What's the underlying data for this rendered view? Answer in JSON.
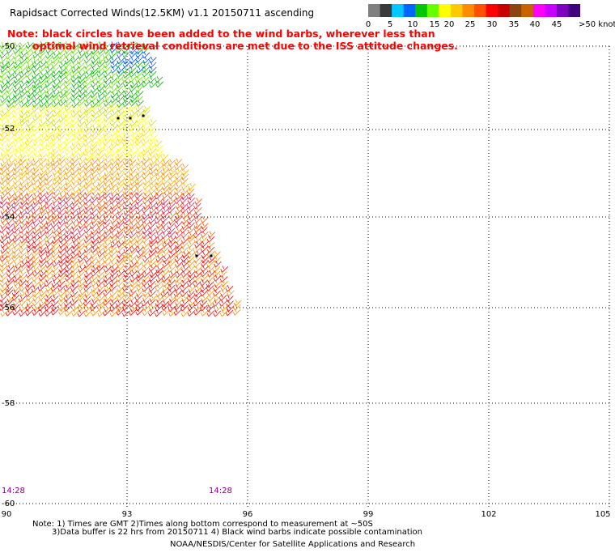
{
  "header": {
    "title": "Rapidsact Corrected Winds(12.5KM) v1.1 20150711 ascending",
    "note_line1": "Note: black circles have been added to the wind barbs, wherever less than",
    "note_line2": "optimal wind retrieval conditions are met due to the ISS attitude changes."
  },
  "colorbar": {
    "colors": [
      "#808080",
      "#3a3a3a",
      "#00c8ff",
      "#0064ff",
      "#00c800",
      "#64ff00",
      "#ffff00",
      "#ffc800",
      "#ff8c00",
      "#ff5000",
      "#ff0000",
      "#c80000",
      "#8b4513",
      "#c86400",
      "#ff00ff",
      "#c800ff",
      "#8000c0",
      "#400080"
    ],
    "labels": [
      "0",
      "5",
      "10",
      "15",
      "20",
      "25",
      "30",
      "35",
      "40",
      "45",
      ">50 knots"
    ]
  },
  "map": {
    "lat_labels": [
      "-50",
      "-52",
      "-54",
      "-56",
      "-58",
      "-60"
    ],
    "lon_labels": [
      "90",
      "93",
      "96",
      "99",
      "102",
      "105"
    ],
    "time_labels": [
      "14:28",
      "14:28"
    ]
  },
  "footer": {
    "line1": "Note: 1) Times are GMT 2)Times along bottom correspond to measurement at ~50S",
    "line2": "3)Data buffer is 22 hrs from 20150711 4) Black wind barbs indicate possible contamination",
    "line3": "NOAA/NESDIS/Center for Satellite Applications and Research"
  }
}
